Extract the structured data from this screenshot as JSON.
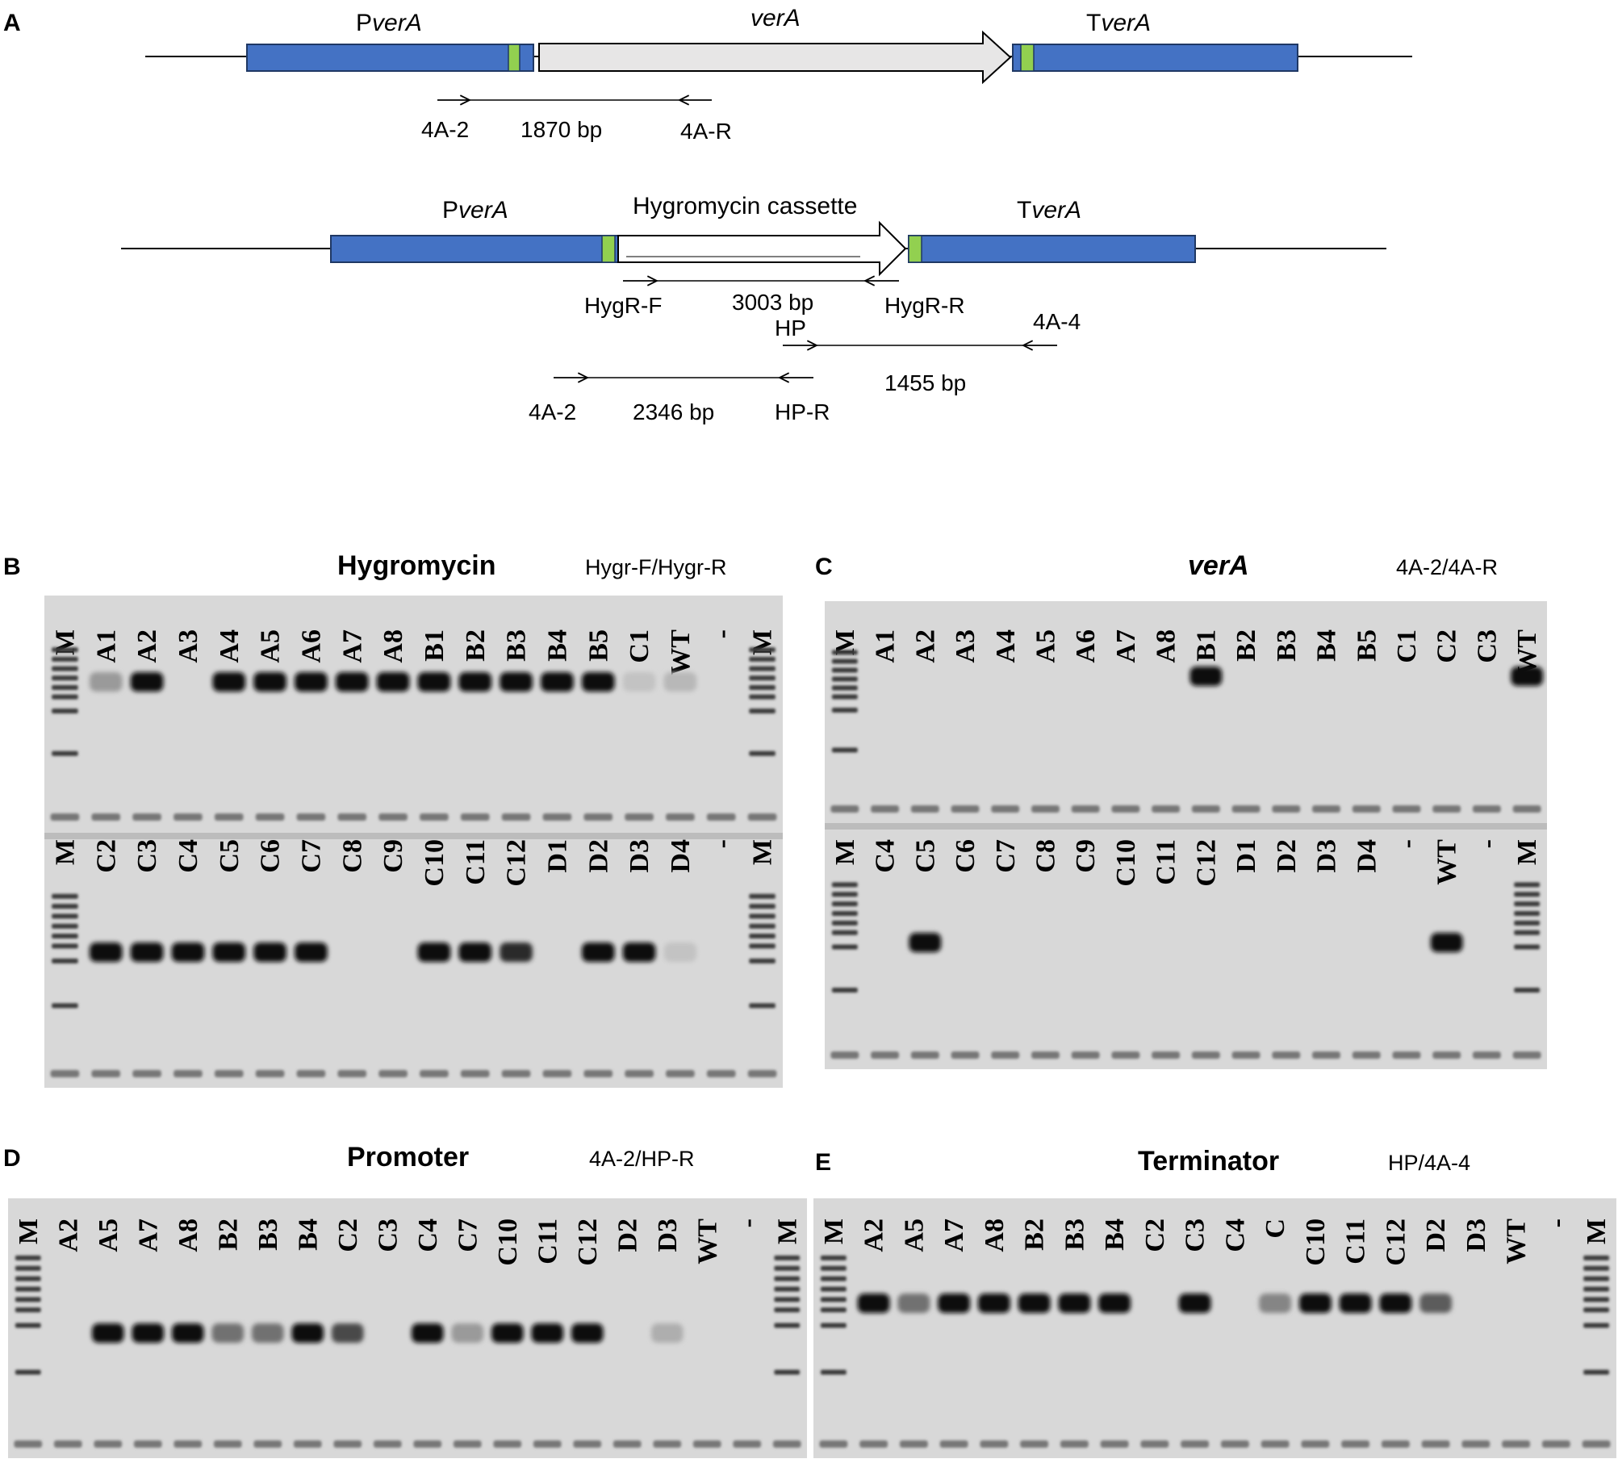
{
  "panel_a": {
    "letter": "A",
    "wild_type": {
      "promoter": "PverA",
      "gene": "verA",
      "terminator": "TverA",
      "primer_left": "4A-2",
      "amplicon": "1870 bp",
      "primer_right": "4A-R"
    },
    "mutant": {
      "promoter": "PverA",
      "cassette": "Hygromycin cassette",
      "terminator": "TverA",
      "hyg_primer_left": "HygR-F",
      "hyg_amplicon": "3003 bp",
      "hyg_primer_right": "HygR-R",
      "term_primer_left": "HP",
      "term_primer_right": "4A-4",
      "term_amplicon": "1455 bp",
      "prom_primer_left": "4A-2",
      "prom_amplicon": "2346 bp",
      "prom_primer_right": "HP-R"
    }
  },
  "gels": [
    {
      "letter": "B",
      "title": "Hygromycin",
      "primers": "Hygr-F/Hygr-R",
      "rows": [
        {
          "lanes": [
            "M",
            "A1",
            "A2",
            "A3",
            "A4",
            "A5",
            "A6",
            "A7",
            "A8",
            "B1",
            "B2",
            "B3",
            "B4",
            "B5",
            "C1",
            "WT",
            "-",
            "M"
          ],
          "band_strength": [
            0,
            0.3,
            1,
            0,
            1,
            1,
            1,
            1,
            1,
            1,
            1,
            1,
            1,
            1,
            0.1,
            0.15,
            0,
            0
          ]
        },
        {
          "lanes": [
            "M",
            "C2",
            "C3",
            "C4",
            "C5",
            "C6",
            "C7",
            "C8",
            "C9",
            "C10",
            "C11",
            "C12",
            "D1",
            "D2",
            "D3",
            "D4",
            "-",
            "M"
          ],
          "band_strength": [
            0,
            1,
            1,
            1,
            1,
            1,
            1,
            0,
            0,
            1,
            1,
            0.85,
            0,
            1,
            1,
            0.1,
            0,
            0
          ]
        }
      ]
    },
    {
      "letter": "C",
      "title": "verA",
      "primers": "4A-2/4A-R",
      "rows": [
        {
          "lanes": [
            "M",
            "A1",
            "A2",
            "A3",
            "A4",
            "A5",
            "A6",
            "A7",
            "A8",
            "B1",
            "B2",
            "B3",
            "B4",
            "B5",
            "C1",
            "C2",
            "C3",
            "WT"
          ],
          "band_strength": [
            0,
            0,
            0,
            0,
            0,
            0,
            0,
            0,
            0,
            1,
            0,
            0,
            0,
            0,
            0,
            0,
            0,
            1
          ]
        },
        {
          "lanes": [
            "M",
            "C4",
            "C5",
            "C6",
            "C7",
            "C8",
            "C9",
            "C10",
            "C11",
            "C12",
            "D1",
            "D2",
            "D3",
            "D4",
            "-",
            "WT",
            "-",
            "M"
          ],
          "band_strength": [
            0,
            0,
            1,
            0,
            0,
            0,
            0,
            0,
            0,
            0,
            0,
            0,
            0,
            0,
            0,
            1,
            0,
            0
          ]
        }
      ]
    },
    {
      "letter": "D",
      "title": "Promoter",
      "primers": "4A-2/HP-R",
      "rows": [
        {
          "lanes": [
            "M",
            "A2",
            "A5",
            "A7",
            "A8",
            "B2",
            "B3",
            "B4",
            "C2",
            "C3",
            "C4",
            "C7",
            "C10",
            "C11",
            "C12",
            "D2",
            "D3",
            "WT",
            "-",
            "M"
          ],
          "band_strength": [
            0,
            0,
            1,
            1,
            1,
            0.5,
            0.5,
            1,
            0.7,
            0,
            1,
            0.3,
            1,
            1,
            1,
            0,
            0.2,
            0,
            0,
            0
          ]
        }
      ]
    },
    {
      "letter": "E",
      "title": "Terminator",
      "primers": "HP/4A-4",
      "rows": [
        {
          "lanes": [
            "M",
            "A2",
            "A5",
            "A7",
            "A8",
            "B2",
            "B3",
            "B4",
            "C2",
            "C3",
            "C4",
            "C",
            "C10",
            "C11",
            "C12",
            "D2",
            "D3",
            "WT",
            "-",
            "M"
          ],
          "band_strength": [
            0,
            1,
            0.5,
            1,
            1,
            1,
            1,
            1,
            0,
            1,
            0,
            0.4,
            1,
            1,
            1,
            0.6,
            0,
            0,
            0,
            0
          ]
        }
      ]
    }
  ]
}
